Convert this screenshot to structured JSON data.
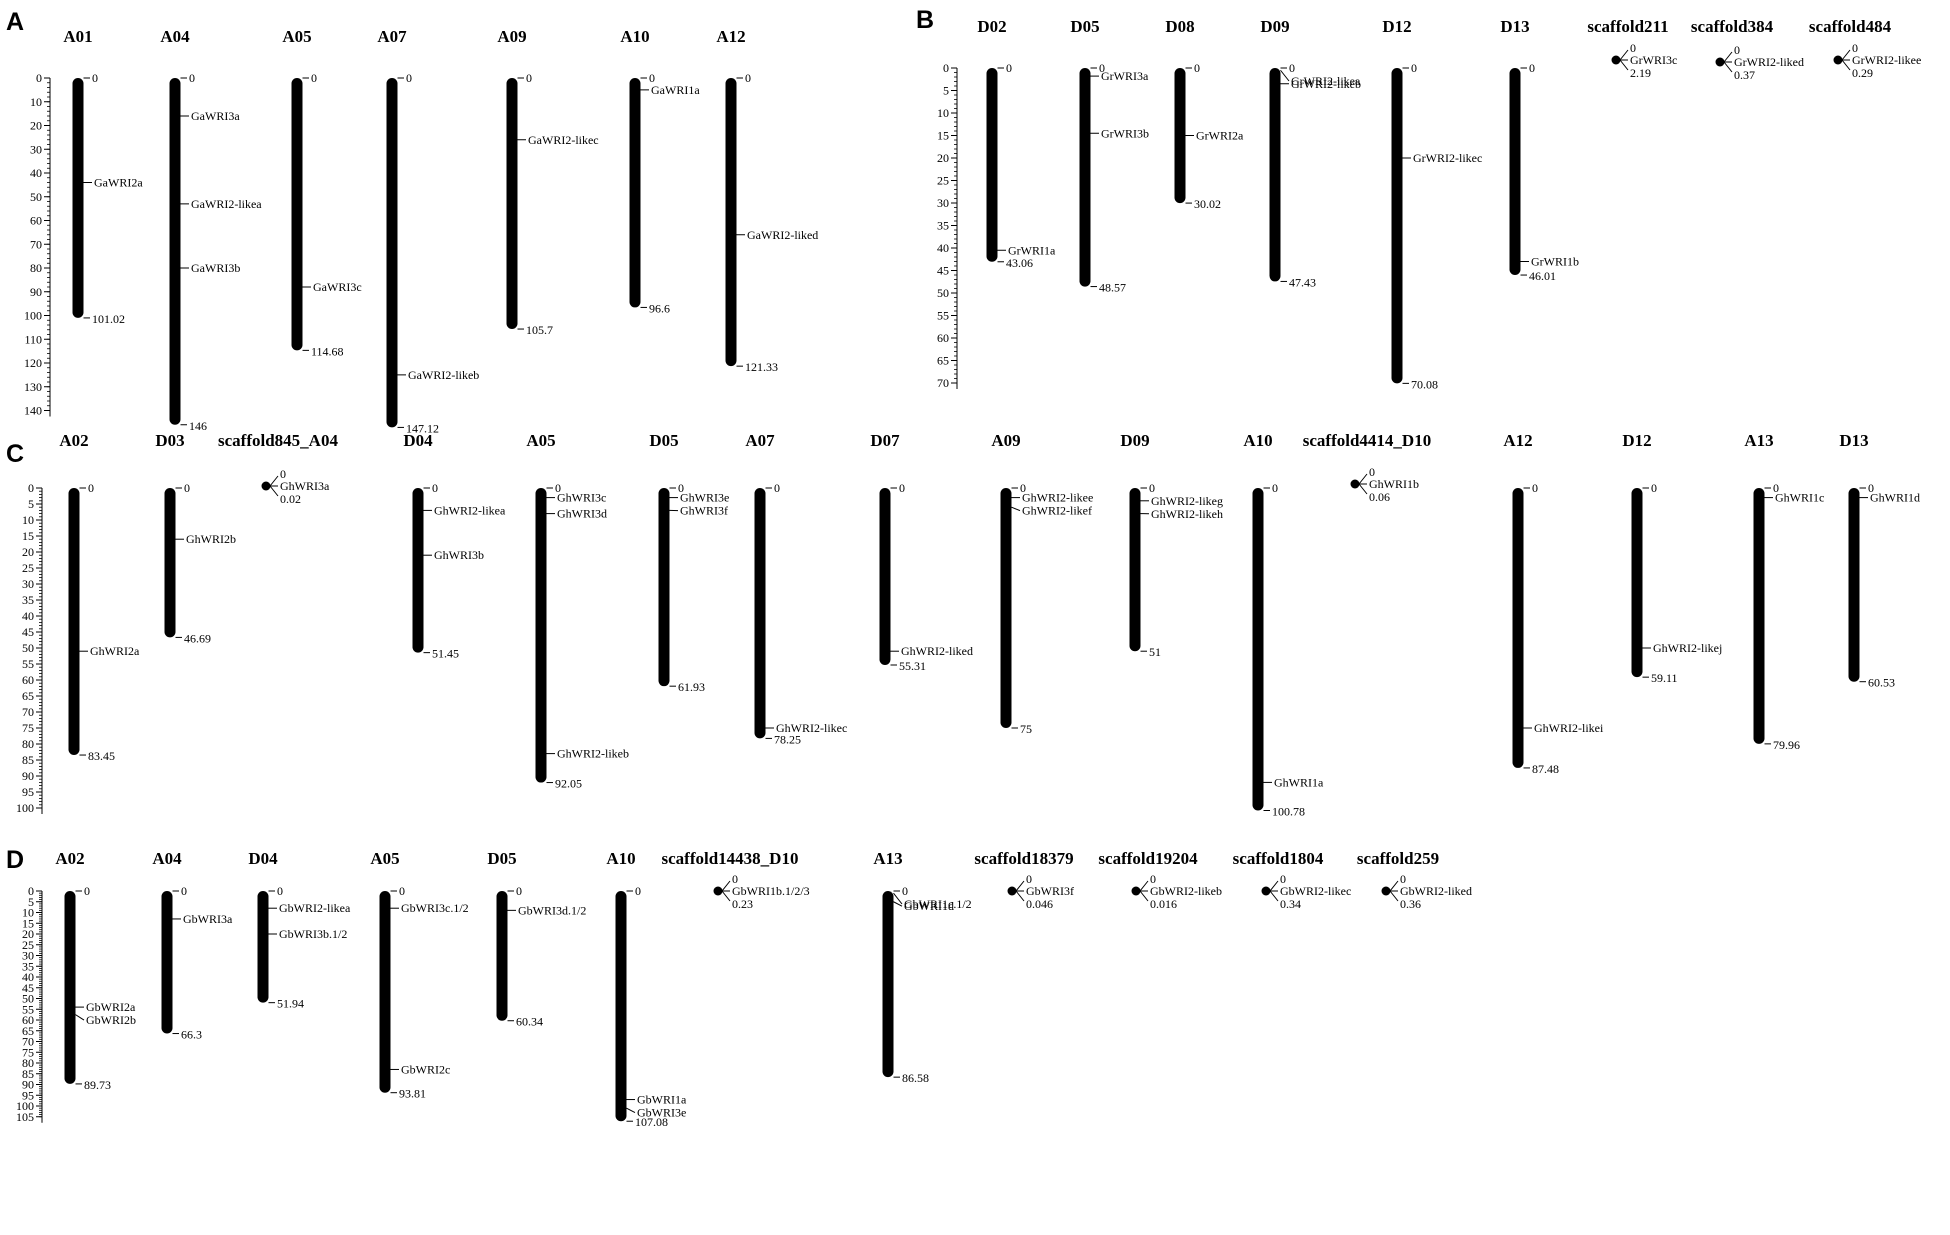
{
  "panels": [
    {
      "id": "A",
      "scale": [
        0,
        10,
        20,
        30,
        40,
        50,
        60,
        70,
        80,
        90,
        100,
        110,
        120,
        130,
        140
      ],
      "chromosomes": [
        {
          "name": "A01",
          "length_label": "101.02",
          "genes": [
            {
              "name": "GaWRI2a",
              "pos": 44
            }
          ]
        },
        {
          "name": "A04",
          "length_label": "146",
          "genes": [
            {
              "name": "GaWRI3a",
              "pos": 16
            },
            {
              "name": "GaWRI2-likea",
              "pos": 53
            },
            {
              "name": "GaWRI3b",
              "pos": 80
            }
          ]
        },
        {
          "name": "A05",
          "length_label": "114.68",
          "genes": [
            {
              "name": "GaWRI3c",
              "pos": 88
            }
          ]
        },
        {
          "name": "A07",
          "length_label": "147.12",
          "genes": [
            {
              "name": "GaWRI2-likeb",
              "pos": 125
            }
          ]
        },
        {
          "name": "A09",
          "length_label": "105.7",
          "genes": [
            {
              "name": "GaWRI2-likec",
              "pos": 26
            }
          ]
        },
        {
          "name": "A10",
          "length_label": "96.6",
          "genes": [
            {
              "name": "GaWRI1a",
              "pos": 5
            }
          ]
        },
        {
          "name": "A12",
          "length_label": "121.33",
          "genes": [
            {
              "name": "GaWRI2-liked",
              "pos": 66
            }
          ]
        }
      ]
    },
    {
      "id": "B",
      "scale": [
        0,
        5,
        10,
        15,
        20,
        25,
        30,
        35,
        40,
        45,
        50,
        55,
        60,
        65,
        70
      ],
      "chromosomes": [
        {
          "name": "D02",
          "length_label": "43.06",
          "genes": [
            {
              "name": "GrWRI1a",
              "pos": 40.5
            }
          ]
        },
        {
          "name": "D05",
          "length_label": "48.57",
          "genes": [
            {
              "name": "GrWRI3a",
              "pos": 1.8
            },
            {
              "name": "GrWRI3b",
              "pos": 14.5
            }
          ]
        },
        {
          "name": "D08",
          "length_label": "30.02",
          "genes": [
            {
              "name": "GrWRI2a",
              "pos": 15
            }
          ]
        },
        {
          "name": "D09",
          "length_label": "47.43",
          "genes": [
            {
              "name": "GrWRI2-likea",
              "pos": 0.5
            },
            {
              "name": "GrWRI2-likeb",
              "pos": 3.5
            }
          ]
        },
        {
          "name": "D12",
          "length_label": "70.08",
          "genes": [
            {
              "name": "GrWRI2-likec",
              "pos": 20
            }
          ]
        },
        {
          "name": "D13",
          "length_label": "46.01",
          "genes": [
            {
              "name": "GrWRI1b",
              "pos": 43
            }
          ]
        },
        {
          "name": "scaffold211",
          "length_label": "2.19",
          "genes": [
            {
              "name": "GrWRI3c",
              "pos": 0
            }
          ]
        },
        {
          "name": "scaffold384",
          "length_label": "0.37",
          "genes": [
            {
              "name": "GrWRI2-liked",
              "pos": 0
            }
          ]
        },
        {
          "name": "scaffold484",
          "length_label": "0.29",
          "genes": [
            {
              "name": "GrWRI2-likee",
              "pos": 0
            }
          ]
        }
      ]
    },
    {
      "id": "C",
      "scale": [
        0,
        5,
        10,
        15,
        20,
        25,
        30,
        35,
        40,
        45,
        50,
        55,
        60,
        65,
        70,
        75,
        80,
        85,
        90,
        95,
        100
      ],
      "chromosomes": [
        {
          "name": "A02",
          "length_label": "83.45",
          "genes": [
            {
              "name": "GhWRI2a",
              "pos": 51
            }
          ]
        },
        {
          "name": "D03",
          "length_label": "46.69",
          "genes": [
            {
              "name": "GhWRI2b",
              "pos": 16
            }
          ]
        },
        {
          "name": "scaffold845_A04",
          "length_label": "0.02",
          "genes": [
            {
              "name": "GhWRI3a",
              "pos": 0
            }
          ]
        },
        {
          "name": "D04",
          "length_label": "51.45",
          "genes": [
            {
              "name": "GhWRI2-likea",
              "pos": 7
            },
            {
              "name": "GhWRI3b",
              "pos": 21
            }
          ]
        },
        {
          "name": "A05",
          "length_label": "92.05",
          "genes": [
            {
              "name": "GhWRI3c",
              "pos": 3
            },
            {
              "name": "GhWRI3d",
              "pos": 8
            },
            {
              "name": "GhWRI2-likeb",
              "pos": 83
            }
          ]
        },
        {
          "name": "D05",
          "length_label": "61.93",
          "genes": [
            {
              "name": "GhWRI3e",
              "pos": 3
            },
            {
              "name": "GhWRI3f",
              "pos": 7
            }
          ]
        },
        {
          "name": "A07",
          "length_label": "78.25",
          "genes": [
            {
              "name": "GhWRI2-likec",
              "pos": 75
            }
          ]
        },
        {
          "name": "D07",
          "length_label": "55.31",
          "genes": [
            {
              "name": "GhWRI2-liked",
              "pos": 51
            }
          ]
        },
        {
          "name": "A09",
          "length_label": "75",
          "genes": [
            {
              "name": "GhWRI2-likee",
              "pos": 3
            },
            {
              "name": "GhWRI2-likef",
              "pos": 6
            }
          ]
        },
        {
          "name": "D09",
          "length_label": "51",
          "genes": [
            {
              "name": "GhWRI2-likeg",
              "pos": 4
            },
            {
              "name": "GhWRI2-likeh",
              "pos": 8
            }
          ]
        },
        {
          "name": "A10",
          "length_label": "100.78",
          "genes": [
            {
              "name": "GhWRI1a",
              "pos": 92
            }
          ]
        },
        {
          "name": "scaffold4414_D10",
          "length_label": "0.06",
          "genes": [
            {
              "name": "GhWRI1b",
              "pos": 0
            }
          ]
        },
        {
          "name": "A12",
          "length_label": "87.48",
          "genes": [
            {
              "name": "GhWRI2-likei",
              "pos": 75
            }
          ]
        },
        {
          "name": "D12",
          "length_label": "59.11",
          "genes": [
            {
              "name": "GhWRI2-likej",
              "pos": 50
            }
          ]
        },
        {
          "name": "A13",
          "length_label": "79.96",
          "genes": [
            {
              "name": "GhWRI1c",
              "pos": 3
            }
          ]
        },
        {
          "name": "D13",
          "length_label": "60.53",
          "genes": [
            {
              "name": "GhWRI1d",
              "pos": 3
            }
          ]
        }
      ]
    },
    {
      "id": "D",
      "scale": [
        0,
        5,
        10,
        15,
        20,
        25,
        30,
        35,
        40,
        45,
        50,
        55,
        60,
        65,
        70,
        75,
        80,
        85,
        90,
        95,
        100,
        105
      ],
      "chromosomes": [
        {
          "name": "A02",
          "length_label": "89.73",
          "genes": [
            {
              "name": "GbWRI2a",
              "pos": 54
            },
            {
              "name": "GbWRI2b",
              "pos": 57.5
            }
          ]
        },
        {
          "name": "A04",
          "length_label": "66.3",
          "genes": [
            {
              "name": "GbWRI3a",
              "pos": 13
            }
          ]
        },
        {
          "name": "D04",
          "length_label": "51.94",
          "genes": [
            {
              "name": "GbWRI2-likea",
              "pos": 8
            },
            {
              "name": "GbWRI3b.1/2",
              "pos": 20
            }
          ]
        },
        {
          "name": "A05",
          "length_label": "93.81",
          "genes": [
            {
              "name": "GbWRI3c.1/2",
              "pos": 8
            },
            {
              "name": "GbWRI2c",
              "pos": 83
            }
          ]
        },
        {
          "name": "D05",
          "length_label": "60.34",
          "genes": [
            {
              "name": "GbWRI3d.1/2",
              "pos": 9
            }
          ]
        },
        {
          "name": "A10",
          "length_label": "107.08",
          "genes": [
            {
              "name": "GbWRI1a",
              "pos": 97
            },
            {
              "name": "GbWRI3e",
              "pos": 101
            }
          ]
        },
        {
          "name": "scaffold14438_D10",
          "length_label": "0.23",
          "genes": [
            {
              "name": "GbWRI1b.1/2/3",
              "pos": 0
            }
          ]
        },
        {
          "name": "A13",
          "length_label": "86.58",
          "genes": [
            {
              "name": "GbWRI1c.1/2",
              "pos": 1
            },
            {
              "name": "GbWRI1d",
              "pos": 5
            }
          ]
        },
        {
          "name": "scaffold18379",
          "length_label": "0.046",
          "genes": [
            {
              "name": "GbWRI3f",
              "pos": 0
            }
          ]
        },
        {
          "name": "scaffold19204",
          "length_label": "0.016",
          "genes": [
            {
              "name": "GbWRI2-likeb",
              "pos": 0
            }
          ]
        },
        {
          "name": "scaffold1804",
          "length_label": "0.34",
          "genes": [
            {
              "name": "GbWRI2-likec",
              "pos": 0
            }
          ]
        },
        {
          "name": "scaffold259",
          "length_label": "0.36",
          "genes": [
            {
              "name": "GbWRI2-liked",
              "pos": 0
            }
          ]
        }
      ]
    }
  ],
  "start_label": "0",
  "colors": {
    "bar": "#000000",
    "background": "#ffffff"
  }
}
